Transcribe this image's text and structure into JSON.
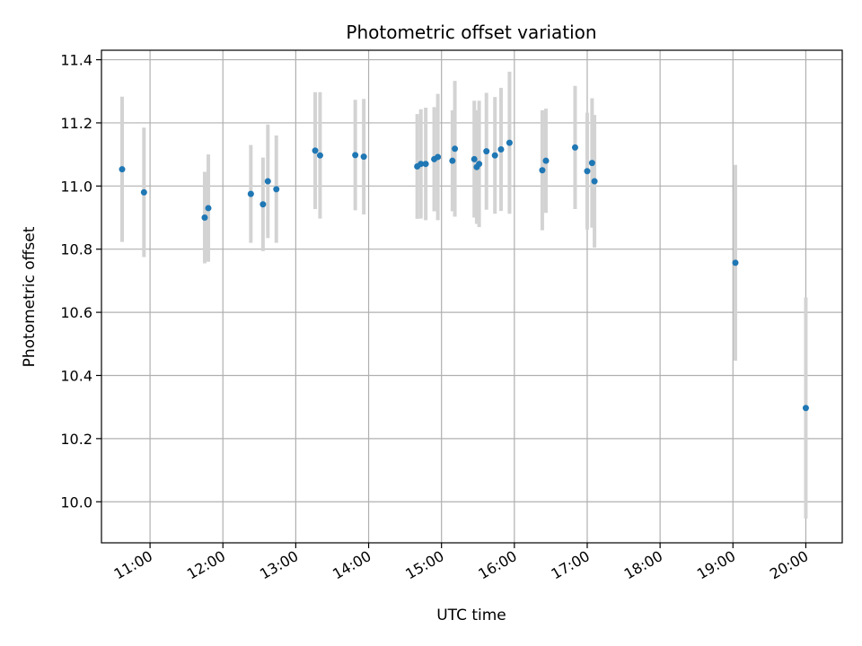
{
  "chart_data": {
    "type": "scatter",
    "title": "Photometric offset variation",
    "xlabel": "UTC time",
    "ylabel": "Photometric offset",
    "x_axis": "time",
    "xlim": [
      "10:20",
      "20:30"
    ],
    "ylim": [
      9.87,
      11.43
    ],
    "xticks": [
      "11:00",
      "12:00",
      "13:00",
      "14:00",
      "15:00",
      "16:00",
      "17:00",
      "18:00",
      "19:00",
      "20:00"
    ],
    "yticks": [
      10.0,
      10.2,
      10.4,
      10.6,
      10.8,
      11.0,
      11.2,
      11.4
    ],
    "ytick_labels": [
      "10.0",
      "10.2",
      "10.4",
      "10.6",
      "10.8",
      "11.0",
      "11.2",
      "11.4"
    ],
    "grid": true,
    "point_color": "#1f77b4",
    "errorbar_color": "#d3d3d3",
    "points": [
      {
        "x": "10:37",
        "y": 11.053,
        "err": 0.23
      },
      {
        "x": "10:55",
        "y": 10.98,
        "err": 0.205
      },
      {
        "x": "11:45",
        "y": 10.9,
        "err": 0.145
      },
      {
        "x": "11:48",
        "y": 10.93,
        "err": 0.17
      },
      {
        "x": "12:23",
        "y": 10.975,
        "err": 0.155
      },
      {
        "x": "12:33",
        "y": 10.942,
        "err": 0.148
      },
      {
        "x": "12:37",
        "y": 11.015,
        "err": 0.18
      },
      {
        "x": "12:44",
        "y": 10.99,
        "err": 0.17
      },
      {
        "x": "13:16",
        "y": 11.112,
        "err": 0.185
      },
      {
        "x": "13:20",
        "y": 11.097,
        "err": 0.2
      },
      {
        "x": "13:49",
        "y": 11.098,
        "err": 0.175
      },
      {
        "x": "13:56",
        "y": 11.093,
        "err": 0.183
      },
      {
        "x": "14:40",
        "y": 11.062,
        "err": 0.166
      },
      {
        "x": "14:43",
        "y": 11.07,
        "err": 0.173
      },
      {
        "x": "14:47",
        "y": 11.07,
        "err": 0.178
      },
      {
        "x": "14:54",
        "y": 11.085,
        "err": 0.165
      },
      {
        "x": "14:57",
        "y": 11.092,
        "err": 0.2
      },
      {
        "x": "15:09",
        "y": 11.08,
        "err": 0.16
      },
      {
        "x": "15:11",
        "y": 11.118,
        "err": 0.215
      },
      {
        "x": "15:27",
        "y": 11.085,
        "err": 0.185
      },
      {
        "x": "15:29",
        "y": 11.06,
        "err": 0.18
      },
      {
        "x": "15:31",
        "y": 11.07,
        "err": 0.2
      },
      {
        "x": "15:37",
        "y": 11.11,
        "err": 0.185
      },
      {
        "x": "15:44",
        "y": 11.097,
        "err": 0.185
      },
      {
        "x": "15:49",
        "y": 11.116,
        "err": 0.195
      },
      {
        "x": "15:56",
        "y": 11.137,
        "err": 0.225
      },
      {
        "x": "16:23",
        "y": 11.05,
        "err": 0.19
      },
      {
        "x": "16:26",
        "y": 11.08,
        "err": 0.165
      },
      {
        "x": "16:50",
        "y": 11.122,
        "err": 0.195
      },
      {
        "x": "17:00",
        "y": 11.047,
        "err": 0.185
      },
      {
        "x": "17:04",
        "y": 11.073,
        "err": 0.205
      },
      {
        "x": "17:06",
        "y": 11.015,
        "err": 0.21
      },
      {
        "x": "19:02",
        "y": 10.757,
        "err": 0.31
      },
      {
        "x": "20:00",
        "y": 10.297,
        "err": 0.35
      }
    ]
  }
}
